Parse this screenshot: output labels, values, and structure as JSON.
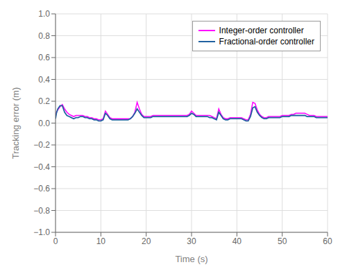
{
  "chart_data": {
    "type": "line",
    "xlabel": "Time (s)",
    "ylabel": "Tracking error (m)",
    "xlim": [
      0,
      60
    ],
    "ylim": [
      -1,
      1
    ],
    "xticks": [
      0,
      10,
      20,
      30,
      40,
      50,
      60
    ],
    "yticks": [
      {
        "value": -1,
        "label": "−1.0"
      },
      {
        "value": -0.8,
        "label": "−0.8"
      },
      {
        "value": -0.6,
        "label": "−0.6"
      },
      {
        "value": -0.4,
        "label": "−0.4"
      },
      {
        "value": -0.2,
        "label": "−0.2"
      },
      {
        "value": 0,
        "label": "0.0"
      },
      0.2,
      0.4,
      0.6,
      0.8,
      {
        "value": 1,
        "label": "1.0"
      }
    ],
    "grid": true,
    "legend": "upper right",
    "x": [
      0,
      0.2,
      0.5,
      1.0,
      1.5,
      2.0,
      2.5,
      3.0,
      3.5,
      4.0,
      4.5,
      5.0,
      5.5,
      6.0,
      6.5,
      7.0,
      7.5,
      8.0,
      8.5,
      9.0,
      9.5,
      10.0,
      10.5,
      11.0,
      11.5,
      12.0,
      12.5,
      13.0,
      13.5,
      14.0,
      14.5,
      15.0,
      15.5,
      16.0,
      16.5,
      17.0,
      17.5,
      18.0,
      18.5,
      19.0,
      19.5,
      20.0,
      20.5,
      21.0,
      21.5,
      22.0,
      22.5,
      23.0,
      23.5,
      24.0,
      24.5,
      25.0,
      25.5,
      26.0,
      26.5,
      27.0,
      27.5,
      28.0,
      28.5,
      29.0,
      29.5,
      30.0,
      30.5,
      31.0,
      31.5,
      32.0,
      32.5,
      33.0,
      33.5,
      34.0,
      34.5,
      35.0,
      35.5,
      36.0,
      36.5,
      37.0,
      37.5,
      38.0,
      38.5,
      39.0,
      39.5,
      40.0,
      40.5,
      41.0,
      41.5,
      42.0,
      42.5,
      43.0,
      43.5,
      44.0,
      44.5,
      45.0,
      45.5,
      46.0,
      46.5,
      47.0,
      47.5,
      48.0,
      48.5,
      49.0,
      49.5,
      50.0,
      50.5,
      51.0,
      51.5,
      52.0,
      52.5,
      53.0,
      53.5,
      54.0,
      54.5,
      55.0,
      55.5,
      56.0,
      56.5,
      57.0,
      57.5,
      58.0,
      58.5,
      59.0,
      59.5,
      60.0
    ],
    "series": [
      {
        "name": "Integer-order controller",
        "color": "#FF00FF",
        "values": [
          0.06,
          0.1,
          0.12,
          0.15,
          0.17,
          0.13,
          0.1,
          0.08,
          0.07,
          0.06,
          0.07,
          0.07,
          0.07,
          0.07,
          0.06,
          0.06,
          0.05,
          0.05,
          0.04,
          0.04,
          0.03,
          0.03,
          0.04,
          0.11,
          0.08,
          0.05,
          0.04,
          0.04,
          0.04,
          0.04,
          0.04,
          0.04,
          0.04,
          0.04,
          0.04,
          0.06,
          0.1,
          0.19,
          0.13,
          0.08,
          0.06,
          0.06,
          0.06,
          0.06,
          0.07,
          0.07,
          0.07,
          0.07,
          0.07,
          0.07,
          0.07,
          0.07,
          0.07,
          0.07,
          0.07,
          0.07,
          0.07,
          0.07,
          0.07,
          0.07,
          0.08,
          0.11,
          0.09,
          0.07,
          0.07,
          0.07,
          0.07,
          0.07,
          0.07,
          0.07,
          0.06,
          0.05,
          0.04,
          0.13,
          0.08,
          0.05,
          0.04,
          0.04,
          0.05,
          0.05,
          0.05,
          0.05,
          0.05,
          0.05,
          0.04,
          0.03,
          0.03,
          0.08,
          0.19,
          0.18,
          0.12,
          0.08,
          0.06,
          0.05,
          0.05,
          0.06,
          0.06,
          0.06,
          0.06,
          0.06,
          0.06,
          0.07,
          0.07,
          0.07,
          0.07,
          0.08,
          0.08,
          0.09,
          0.09,
          0.09,
          0.09,
          0.09,
          0.08,
          0.07,
          0.07,
          0.07,
          0.06,
          0.06,
          0.06,
          0.06,
          0.06,
          0.06
        ]
      },
      {
        "name": "Fractional-order controller",
        "color": "#2060A0",
        "values": [
          0.04,
          0.09,
          0.13,
          0.16,
          0.16,
          0.1,
          0.07,
          0.06,
          0.05,
          0.04,
          0.05,
          0.05,
          0.06,
          0.06,
          0.05,
          0.05,
          0.04,
          0.04,
          0.03,
          0.03,
          0.02,
          0.02,
          0.03,
          0.09,
          0.07,
          0.04,
          0.03,
          0.03,
          0.03,
          0.03,
          0.03,
          0.03,
          0.03,
          0.03,
          0.04,
          0.06,
          0.09,
          0.13,
          0.1,
          0.07,
          0.05,
          0.05,
          0.05,
          0.05,
          0.06,
          0.06,
          0.06,
          0.06,
          0.06,
          0.06,
          0.06,
          0.06,
          0.06,
          0.06,
          0.06,
          0.06,
          0.06,
          0.06,
          0.06,
          0.06,
          0.07,
          0.09,
          0.08,
          0.06,
          0.06,
          0.06,
          0.06,
          0.06,
          0.06,
          0.05,
          0.05,
          0.04,
          0.03,
          0.1,
          0.07,
          0.04,
          0.03,
          0.03,
          0.04,
          0.04,
          0.04,
          0.04,
          0.04,
          0.04,
          0.03,
          0.02,
          0.02,
          0.06,
          0.14,
          0.15,
          0.1,
          0.07,
          0.05,
          0.04,
          0.04,
          0.05,
          0.05,
          0.05,
          0.05,
          0.05,
          0.05,
          0.06,
          0.06,
          0.06,
          0.06,
          0.07,
          0.07,
          0.07,
          0.07,
          0.07,
          0.07,
          0.07,
          0.06,
          0.06,
          0.06,
          0.06,
          0.05,
          0.05,
          0.05,
          0.05,
          0.05,
          0.05
        ]
      }
    ]
  }
}
